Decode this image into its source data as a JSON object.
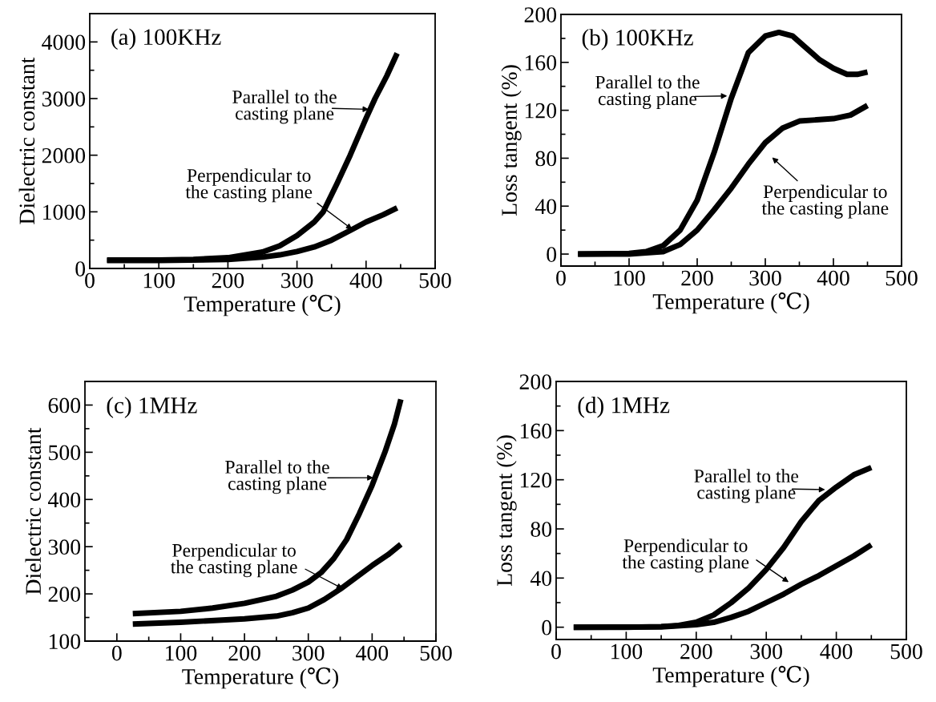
{
  "chart_data": [
    {
      "type": "line",
      "title": "(a) 100KHz",
      "xlabel": "Temperature (℃)",
      "ylabel": "Dielectric constant",
      "xlim": [
        0,
        500
      ],
      "xticks": [
        0,
        {
          "value": 50,
          "label": null
        },
        100,
        {
          "value": 150,
          "label": null
        },
        200,
        {
          "value": 250,
          "label": null
        },
        300,
        {
          "value": 350,
          "label": null
        },
        400,
        {
          "value": 450,
          "label": null
        },
        500
      ],
      "ylim": [
        0,
        4500
      ],
      "yticks": [
        0,
        {
          "value": 500,
          "label": null
        },
        1000,
        {
          "value": 1500,
          "label": null
        },
        2000,
        {
          "value": 2500,
          "label": null
        },
        3000,
        {
          "value": 3500,
          "label": null
        },
        4000
      ],
      "grid": false,
      "legend": false,
      "series": [
        {
          "color": "#000000",
          "x": [
            25,
            100,
            150,
            200,
            250,
            275,
            300,
            325,
            338,
            358,
            377,
            400,
            413,
            430,
            445
          ],
          "values": [
            150,
            150,
            160,
            190,
            290,
            400,
            580,
            820,
            1000,
            1500,
            2000,
            2650,
            3000,
            3400,
            3800
          ]
        },
        {
          "color": "#000000",
          "x": [
            25,
            100,
            200,
            250,
            275,
            300,
            325,
            350,
            380,
            400,
            425,
            445
          ],
          "values": [
            140,
            140,
            160,
            200,
            240,
            300,
            380,
            500,
            690,
            820,
            950,
            1070
          ]
        }
      ],
      "annotations": [
        {
          "text": "Parallel to the\ncasting plane",
          "x": 404,
          "y": 2810
        },
        {
          "text": "Perpendicular to\nthe casting plane",
          "x": 380,
          "y": 690
        }
      ]
    },
    {
      "type": "line",
      "title": "(b) 100KHz",
      "xlabel": "Temperature (℃)",
      "ylabel": "Loss tangent (%)",
      "xlim": [
        0,
        500
      ],
      "xticks": [
        0,
        {
          "value": 50,
          "label": null
        },
        100,
        {
          "value": 150,
          "label": null
        },
        200,
        {
          "value": 250,
          "label": null
        },
        300,
        {
          "value": 350,
          "label": null
        },
        400,
        {
          "value": 450,
          "label": null
        },
        500
      ],
      "ylim": [
        -10,
        200
      ],
      "yticks": [
        0,
        {
          "value": 20,
          "label": null
        },
        40,
        {
          "value": 60,
          "label": null
        },
        80,
        {
          "value": 100,
          "label": null
        },
        120,
        {
          "value": 140,
          "label": null
        },
        160,
        {
          "value": 180,
          "label": null
        },
        200
      ],
      "grid": false,
      "legend": false,
      "series": [
        {
          "color": "#000000",
          "x": [
            25,
            100,
            125,
            150,
            175,
            200,
            225,
            250,
            275,
            300,
            320,
            340,
            360,
            380,
            400,
            420,
            435,
            450
          ],
          "values": [
            0,
            0.5,
            2,
            7,
            20,
            45,
            85,
            130,
            168,
            182,
            185,
            182,
            172,
            162,
            155,
            150,
            150,
            152
          ]
        },
        {
          "color": "#000000",
          "x": [
            25,
            100,
            150,
            175,
            200,
            225,
            250,
            275,
            300,
            325,
            350,
            375,
            400,
            425,
            450
          ],
          "values": [
            0,
            0,
            2,
            8,
            20,
            37,
            55,
            75,
            93,
            105,
            111,
            112,
            113,
            116,
            124
          ]
        }
      ],
      "annotations": [
        {
          "text": "Parallel to the\ncasting plane",
          "x": 244,
          "y": 132
        },
        "Perpendicular to\nthe casting plane"
      ]
    },
    {
      "type": "line",
      "title": "(c) 1MHz",
      "xlabel": "Temperature (℃)",
      "ylabel": "Dielectric constant",
      "xlim": [
        -50,
        500
      ],
      "xticks": [
        0,
        {
          "value": 50,
          "label": null
        },
        100,
        {
          "value": 150,
          "label": null
        },
        200,
        {
          "value": 250,
          "label": null
        },
        300,
        {
          "value": 350,
          "label": null
        },
        400,
        {
          "value": 450,
          "label": null
        },
        500
      ],
      "ylim": [
        100,
        650
      ],
      "yticks": [
        100,
        {
          "value": 150,
          "label": null
        },
        200,
        {
          "value": 250,
          "label": null
        },
        300,
        {
          "value": 350,
          "label": null
        },
        400,
        {
          "value": 450,
          "label": null
        },
        500,
        {
          "value": 550,
          "label": null
        },
        600
      ],
      "grid": false,
      "legend": false,
      "series": [
        {
          "color": "#000000",
          "x": [
            25,
            100,
            150,
            200,
            250,
            275,
            300,
            320,
            340,
            360,
            380,
            400,
            420,
            435,
            445
          ],
          "values": [
            158,
            163,
            170,
            180,
            195,
            208,
            225,
            245,
            275,
            315,
            370,
            430,
            500,
            560,
            612
          ]
        },
        {
          "color": "#000000",
          "x": [
            25,
            100,
            200,
            250,
            275,
            300,
            325,
            350,
            375,
            400,
            425,
            445
          ],
          "values": [
            136,
            140,
            147,
            153,
            160,
            170,
            188,
            210,
            235,
            260,
            283,
            305
          ]
        }
      ],
      "annotations": [
        {
          "text": "Parallel to the\ncasting plane",
          "x": 402,
          "y": 446
        },
        {
          "text": "Perpendicular to\nthe casting plane",
          "x": 354,
          "y": 211
        }
      ]
    },
    {
      "type": "line",
      "title": "(d) 1MHz",
      "xlabel": "Temperature (℃)",
      "ylabel": "Loss tangent (%)",
      "xlim": [
        0,
        500
      ],
      "xticks": [
        0,
        {
          "value": 50,
          "label": null
        },
        100,
        {
          "value": 150,
          "label": null
        },
        200,
        {
          "value": 250,
          "label": null
        },
        300,
        {
          "value": 350,
          "label": null
        },
        400,
        {
          "value": 450,
          "label": null
        },
        500
      ],
      "ylim": [
        -10,
        200
      ],
      "yticks": [
        0,
        {
          "value": 20,
          "label": null
        },
        40,
        {
          "value": 60,
          "label": null
        },
        80,
        {
          "value": 100,
          "label": null
        },
        120,
        {
          "value": 140,
          "label": null
        },
        160,
        {
          "value": 180,
          "label": null
        },
        200
      ],
      "grid": false,
      "legend": false,
      "series": [
        {
          "color": "#000000",
          "x": [
            25,
            100,
            150,
            175,
            200,
            225,
            250,
            275,
            300,
            325,
            350,
            375,
            400,
            425,
            450
          ],
          "values": [
            0,
            0,
            0.5,
            1.5,
            4,
            10,
            20,
            32,
            47,
            65,
            86,
            103,
            114,
            124,
            130
          ]
        },
        {
          "color": "#000000",
          "x": [
            25,
            150,
            200,
            225,
            250,
            275,
            300,
            325,
            350,
            375,
            400,
            425,
            450
          ],
          "values": [
            0,
            0.3,
            2,
            4,
            8,
            13,
            20,
            27,
            35,
            42,
            50,
            58,
            67
          ]
        }
      ],
      "annotations": [
        {
          "text": "Parallel to the\ncasting plane",
          "x": 384,
          "y": 112
        },
        "Perpendicular to\nthe casting plane"
      ]
    }
  ]
}
